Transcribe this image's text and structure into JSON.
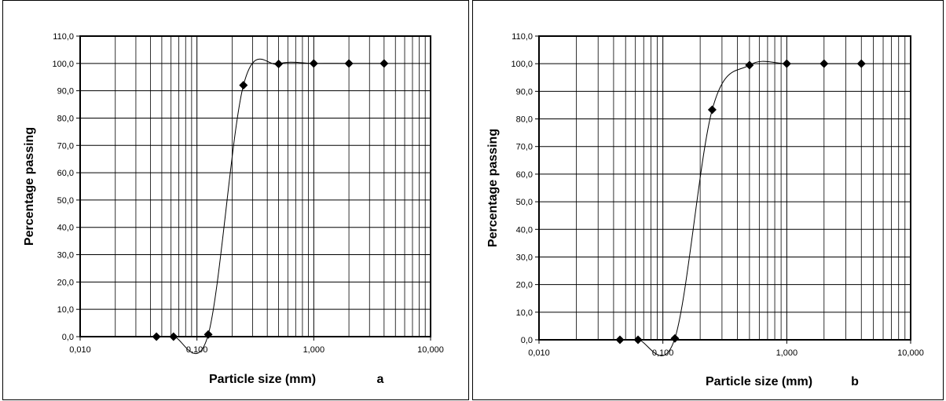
{
  "chart_data": [
    {
      "type": "scatter",
      "panel_label": "a",
      "xlabel": "Particle size (mm)",
      "ylabel": "Percentage passing",
      "x_scale": "log",
      "xlim": [
        0.01,
        10
      ],
      "ylim": [
        0,
        110
      ],
      "x_ticks": [
        0.01,
        0.1,
        1,
        10
      ],
      "x_tick_labels": [
        "0,010",
        "0,100",
        "1,000",
        "10,000"
      ],
      "y_ticks": [
        0,
        10,
        20,
        30,
        40,
        50,
        60,
        70,
        80,
        90,
        100,
        110
      ],
      "y_tick_labels": [
        "0,0",
        "10,0",
        "20,0",
        "30,0",
        "40,0",
        "50,0",
        "60,0",
        "70,0",
        "80,0",
        "90,0",
        "100,0",
        "110,0"
      ],
      "grid": true,
      "legend": "none",
      "marker": "diamond",
      "series": [
        {
          "x": [
            0.045,
            0.063,
            0.125,
            0.25,
            0.5,
            1,
            2,
            4
          ],
          "y": [
            0.0,
            0.0,
            0.8,
            92.0,
            99.8,
            100.0,
            100.0,
            100.0
          ]
        }
      ]
    },
    {
      "type": "scatter",
      "panel_label": "b",
      "xlabel": "Particle size (mm)",
      "ylabel": "Percentage passing",
      "x_scale": "log",
      "xlim": [
        0.01,
        10
      ],
      "ylim": [
        0,
        110
      ],
      "x_ticks": [
        0.01,
        0.1,
        1,
        10
      ],
      "x_tick_labels": [
        "0,010",
        "0,100",
        "1,000",
        "10,000"
      ],
      "y_ticks": [
        0,
        10,
        20,
        30,
        40,
        50,
        60,
        70,
        80,
        90,
        100,
        110
      ],
      "y_tick_labels": [
        "0,0",
        "10,0",
        "20,0",
        "30,0",
        "40,0",
        "50,0",
        "60,0",
        "70,0",
        "80,0",
        "90,0",
        "100,0",
        "110,0"
      ],
      "grid": true,
      "legend": "none",
      "marker": "diamond",
      "series": [
        {
          "x": [
            0.045,
            0.063,
            0.125,
            0.25,
            0.5,
            1,
            2,
            4
          ],
          "y": [
            0.0,
            0.0,
            0.5,
            83.3,
            99.5,
            100.0,
            100.0,
            100.0
          ]
        }
      ]
    }
  ]
}
